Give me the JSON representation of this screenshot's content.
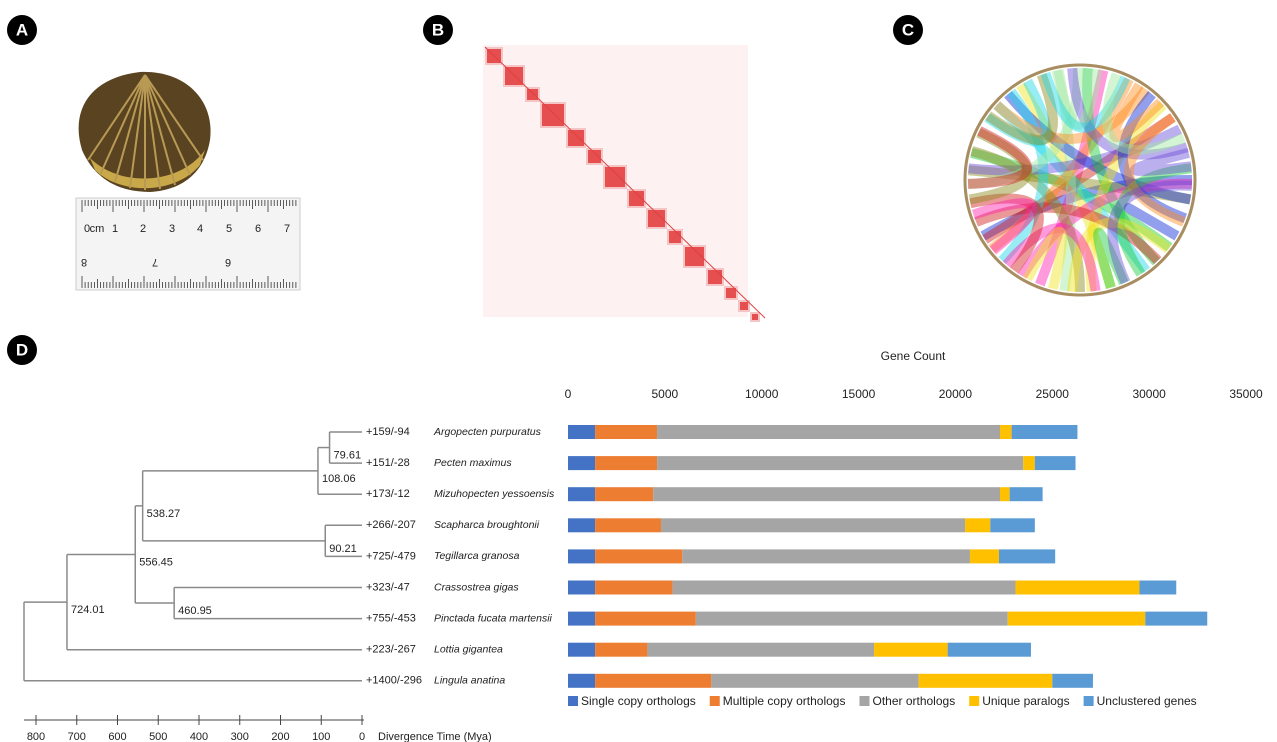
{
  "panel_labels": [
    "A",
    "B",
    "C",
    "D"
  ],
  "ruler": {
    "top_labels": [
      "0",
      "cm",
      "1",
      "2",
      "3",
      "4",
      "5",
      "6",
      "7"
    ],
    "bottom_labels": [
      "8",
      "7",
      "6"
    ]
  },
  "tree": {
    "gains": [
      "+159",
      "+151",
      "+173",
      "+266",
      "+725",
      "+323",
      "+755",
      "+223",
      "+1400"
    ],
    "losses": [
      "/-94",
      "/-28",
      "/-12",
      "/-207",
      "/-479",
      "/-47",
      "/-453",
      "/-267",
      "/-296"
    ],
    "node_ages": [
      79.61,
      108.06,
      90.21,
      538.27,
      556.45,
      460.95,
      724.01
    ],
    "xlim": [
      800,
      0
    ],
    "xticks": [
      800,
      700,
      600,
      500,
      400,
      300,
      200,
      100,
      0
    ],
    "xlabel": "Divergence Time (Mya)"
  },
  "chart_data": {
    "type": "stacked-barh",
    "title": "Gene Count",
    "categories": [
      "Argopecten purpuratus",
      "Pecten maximus",
      "Mizuhopecten yessoensis",
      "Scapharca broughtonii",
      "Tegillarca granosa",
      "Crassostrea gigas",
      "Pinctada fucata martensii",
      "Lottia gigantea",
      "Lingula anatina"
    ],
    "series": [
      {
        "name": "Single copy orthologs",
        "color": "#4472c4",
        "values": [
          1400,
          1400,
          1400,
          1400,
          1400,
          1400,
          1400,
          1400,
          1400
        ]
      },
      {
        "name": "Multiple copy orthologs",
        "color": "#ed7d31",
        "values": [
          3200,
          3200,
          3000,
          3400,
          4500,
          4000,
          5200,
          2700,
          6000
        ]
      },
      {
        "name": "Other orthologs",
        "color": "#a5a5a5",
        "values": [
          17700,
          18900,
          17900,
          15700,
          14850,
          17700,
          16100,
          11700,
          10700
        ]
      },
      {
        "name": "Unique paralogs",
        "color": "#ffc000",
        "values": [
          600,
          600,
          500,
          1300,
          1500,
          6400,
          7100,
          3800,
          6900
        ]
      },
      {
        "name": "Unclustered genes",
        "color": "#5b9bd5",
        "values": [
          3400,
          2100,
          1700,
          2300,
          2900,
          1900,
          3200,
          4300,
          2100
        ]
      }
    ],
    "xlim": [
      0,
      35000
    ],
    "xticks": [
      0,
      5000,
      10000,
      15000,
      20000,
      25000,
      30000,
      35000
    ]
  }
}
